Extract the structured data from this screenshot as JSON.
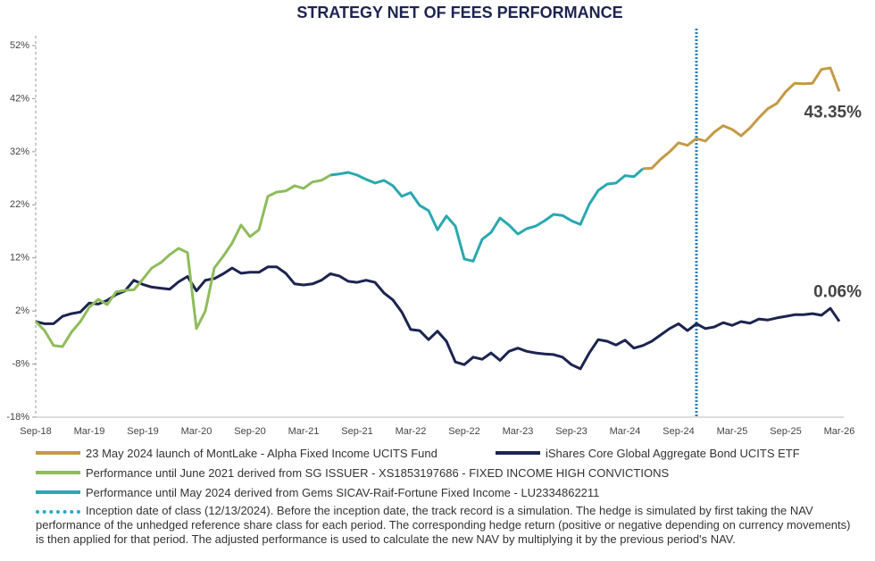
{
  "chart_data": {
    "type": "line",
    "title": "STRATEGY NET OF FEES PERFORMANCE",
    "categories": [
      "Sep-18",
      null,
      null,
      null,
      null,
      null,
      "Mar-19",
      null,
      null,
      null,
      null,
      null,
      "Sep-19",
      null,
      null,
      null,
      null,
      null,
      "Mar-20",
      null,
      null,
      null,
      null,
      null,
      "Sep-20",
      null,
      null,
      null,
      null,
      null,
      "Mar-21",
      null,
      null,
      null,
      null,
      null,
      "Sep-21",
      null,
      null,
      null,
      null,
      null,
      "Mar-22",
      null,
      null,
      null,
      null,
      null,
      "Sep-22",
      null,
      null,
      null,
      null,
      null,
      "Mar-23",
      null,
      null,
      null,
      null,
      null,
      "Sep-23",
      null,
      null,
      null,
      null,
      null,
      "Mar-24",
      null,
      null,
      null,
      null,
      null,
      "Sep-24",
      null,
      null,
      null,
      null,
      null,
      "Mar-25",
      null,
      null,
      null,
      null,
      null,
      "Sep-25",
      null,
      null,
      null,
      null,
      null,
      "Mar-26"
    ],
    "series": [
      {
        "name": "23 May 2024 launch of MontLake - Alpha Fixed Income UCITS Fund",
        "color": "#c49a45",
        "values": [
          null,
          null,
          null,
          null,
          null,
          null,
          null,
          null,
          null,
          null,
          null,
          null,
          null,
          null,
          null,
          null,
          null,
          null,
          null,
          null,
          null,
          null,
          null,
          null,
          null,
          null,
          null,
          null,
          null,
          null,
          null,
          null,
          null,
          null,
          null,
          null,
          null,
          null,
          null,
          null,
          null,
          null,
          null,
          null,
          null,
          null,
          null,
          null,
          null,
          null,
          null,
          null,
          null,
          null,
          null,
          null,
          null,
          null,
          null,
          null,
          null,
          null,
          null,
          null,
          null,
          null,
          null,
          null,
          28.8,
          28.9,
          30.6,
          32,
          33.7,
          33.2,
          34.5,
          34,
          35.7,
          36.9,
          36.2,
          35,
          36.5,
          38.4,
          40.1,
          41.1,
          43.3,
          44.9,
          44.8,
          44.9,
          47.5,
          47.8,
          43.35
        ],
        "value_labels": [
          null,
          null,
          null,
          null,
          null,
          null,
          null,
          null,
          null,
          null,
          null,
          null,
          null,
          null,
          null,
          null,
          null,
          null,
          null,
          null,
          null,
          null,
          null,
          null,
          null,
          null,
          null,
          null,
          null,
          null,
          null,
          null,
          null,
          null,
          null,
          null,
          null,
          null,
          null,
          null,
          null,
          null,
          null,
          null,
          null,
          null,
          null,
          null,
          null,
          null,
          null,
          null,
          null,
          null,
          null,
          null,
          null,
          null,
          null,
          null,
          null,
          null,
          null,
          null,
          null,
          null,
          null,
          null,
          null,
          null,
          null,
          null,
          null,
          null,
          null,
          null,
          null,
          null,
          null,
          null,
          null,
          null,
          null,
          null,
          null,
          null,
          null,
          null,
          null,
          null,
          "43.35%"
        ]
      },
      {
        "name": "iShares Core Global Aggregate Bond UCITS ETF",
        "color": "#1c2450",
        "values": [
          0,
          -0.4,
          -0.4,
          1,
          1.5,
          1.8,
          3.5,
          3.3,
          4,
          5.1,
          5.8,
          7.8,
          7,
          6.5,
          6.3,
          6.1,
          7.5,
          8.5,
          5.8,
          7.8,
          8.1,
          9,
          10.1,
          9.1,
          9.3,
          9.3,
          10.3,
          10.3,
          9.1,
          7.1,
          6.9,
          7.1,
          7.8,
          9,
          8.6,
          7.6,
          7.4,
          7.8,
          7.4,
          5.4,
          4.1,
          1.8,
          -1.5,
          -1.7,
          -3.4,
          -1.8,
          -3.7,
          -7.6,
          -8.1,
          -6.7,
          -7.1,
          -5.9,
          -7.3,
          -5.6,
          -5,
          -5.6,
          -5.9,
          -6.1,
          -6.2,
          -6.7,
          -8.1,
          -8.9,
          -5.9,
          -3.4,
          -3.7,
          -4.4,
          -3.5,
          -5,
          -4.5,
          -3.7,
          -2.5,
          -1.3,
          -0.4,
          -1.7,
          -0.4,
          -1.3,
          -1,
          -0.2,
          -0.7,
          0,
          -0.3,
          0.5,
          0.3,
          0.7,
          1,
          1.3,
          1.3,
          1.5,
          1.2,
          2.5,
          0.06
        ],
        "value_labels": [
          null,
          null,
          null,
          null,
          null,
          null,
          null,
          null,
          null,
          null,
          null,
          null,
          null,
          null,
          null,
          null,
          null,
          null,
          null,
          null,
          null,
          null,
          null,
          null,
          null,
          null,
          null,
          null,
          null,
          null,
          null,
          null,
          null,
          null,
          null,
          null,
          null,
          null,
          null,
          null,
          null,
          null,
          null,
          null,
          null,
          null,
          null,
          null,
          null,
          null,
          null,
          null,
          null,
          null,
          null,
          null,
          null,
          null,
          null,
          null,
          null,
          null,
          null,
          null,
          null,
          null,
          null,
          null,
          null,
          null,
          null,
          null,
          null,
          null,
          null,
          null,
          null,
          null,
          null,
          null,
          null,
          null,
          null,
          null,
          null,
          null,
          null,
          null,
          null,
          null,
          "0.06%"
        ]
      },
      {
        "name": "Performance until June 2021 derived from SG ISSUER - XS1853197686 - FIXED INCOME HIGH CONVICTIONS",
        "color": "#8fbc5a",
        "values": [
          0,
          -1.7,
          -4.5,
          -4.7,
          -2,
          0,
          2.7,
          4.2,
          3.2,
          5.6,
          5.9,
          6,
          8,
          10.1,
          11.1,
          12.6,
          13.8,
          13,
          -1.3,
          2,
          10.1,
          12.3,
          14.8,
          18.2,
          16,
          17.3,
          23.6,
          24.4,
          24.6,
          25.6,
          25.1,
          26.3,
          26.6,
          27.6,
          null,
          null,
          null,
          null,
          null,
          null,
          null,
          null,
          null,
          null,
          null,
          null,
          null,
          null,
          null,
          null,
          null,
          null,
          null,
          null,
          null,
          null,
          null,
          null,
          null,
          null,
          null,
          null,
          null,
          null,
          null,
          null,
          null,
          null,
          null,
          null,
          null,
          null,
          null,
          null,
          null,
          null,
          null,
          null,
          null,
          null,
          null,
          null,
          null,
          null,
          null,
          null,
          null,
          null,
          null,
          null,
          null
        ]
      },
      {
        "name": "Performance until May 2024 derived from Gems SICAV-Raif-Fortune Fixed Income - LU2334862211",
        "color": "#2aa8b0",
        "values": [
          null,
          null,
          null,
          null,
          null,
          null,
          null,
          null,
          null,
          null,
          null,
          null,
          null,
          null,
          null,
          null,
          null,
          null,
          null,
          null,
          null,
          null,
          null,
          null,
          null,
          null,
          null,
          null,
          null,
          null,
          null,
          null,
          null,
          27.6,
          27.8,
          28.1,
          27.6,
          26.8,
          26.1,
          26.6,
          25.6,
          23.6,
          24.3,
          21.9,
          20.9,
          17.3,
          19.9,
          18,
          11.8,
          11.4,
          15.5,
          16.8,
          19.5,
          18.2,
          16.5,
          17.5,
          18,
          19,
          20.2,
          20,
          19,
          18.3,
          22.1,
          24.7,
          25.9,
          26.1,
          27.5,
          27.3,
          28.8,
          null,
          null,
          null,
          null,
          null,
          null,
          null,
          null,
          null,
          null,
          null,
          null,
          null,
          null,
          null,
          null,
          null,
          null,
          null,
          null,
          null,
          null
        ]
      }
    ],
    "note": "Inception date of class (12/13/2024). Before the inception date, the track record is a simulation. The hedge is simulated by first taking the NAV performance of the unhedged reference share class for each period. The corresponding hedge return (positive or negative depending on currency movements) is then applied for that period. The adjusted performance is used to calculate the new NAV by multiplying it by the previous period's NAV.",
    "ylim": [
      -18,
      52
    ],
    "yticks": [
      {
        "value": -18,
        "label": "-18%"
      },
      {
        "value": -8,
        "label": "-8%"
      },
      {
        "value": 2,
        "label": "2%"
      },
      {
        "value": 12,
        "label": "12%"
      },
      {
        "value": 22,
        "label": "22%"
      },
      {
        "value": 32,
        "label": "32%"
      },
      {
        "value": 42,
        "label": "42%"
      },
      {
        "value": 52,
        "label": "52%"
      }
    ],
    "grid": false
  }
}
